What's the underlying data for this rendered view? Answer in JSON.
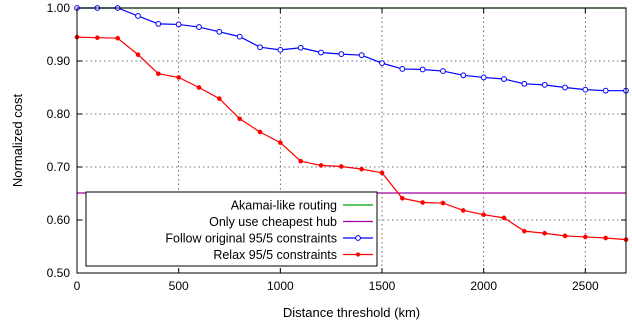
{
  "chart_data": {
    "type": "line",
    "title": "",
    "xlabel": "Distance threshold (km)",
    "ylabel": "Normalized cost",
    "xlim": [
      0,
      2700
    ],
    "ylim": [
      0.5,
      1.0
    ],
    "x_ticks": [
      0,
      500,
      1000,
      1500,
      2000,
      2500
    ],
    "y_ticks": [
      0.5,
      0.6,
      0.7,
      0.8,
      0.9,
      1.0
    ],
    "x_tick_labels": [
      "0",
      "500",
      "1000",
      "1500",
      "2000",
      "2500"
    ],
    "y_tick_labels": [
      "0.50",
      "0.60",
      "0.70",
      "0.80",
      "0.90",
      "1.00"
    ],
    "grid": true,
    "legend_position": "bottom-left",
    "series": [
      {
        "name": "Akamai-like routing",
        "color": "#00a000",
        "marker": "none",
        "x": [
          0,
          2700
        ],
        "y": [
          1.0,
          1.0
        ]
      },
      {
        "name": "Only use cheapest hub",
        "color": "#a000a0",
        "marker": "none",
        "x": [
          0,
          2700
        ],
        "y": [
          0.651,
          0.651
        ]
      },
      {
        "name": "Follow original 95/5 constraints",
        "color": "#0000ff",
        "marker": "circle-open",
        "x": [
          0,
          100,
          200,
          300,
          400,
          500,
          600,
          700,
          800,
          900,
          1000,
          1100,
          1200,
          1300,
          1400,
          1500,
          1600,
          1700,
          1800,
          1900,
          2000,
          2100,
          2200,
          2300,
          2400,
          2500,
          2600,
          2700
        ],
        "y": [
          1.0,
          1.0,
          1.0,
          0.985,
          0.97,
          0.969,
          0.964,
          0.955,
          0.946,
          0.926,
          0.921,
          0.925,
          0.916,
          0.913,
          0.911,
          0.896,
          0.885,
          0.884,
          0.881,
          0.873,
          0.869,
          0.866,
          0.857,
          0.855,
          0.85,
          0.846,
          0.844,
          0.844
        ]
      },
      {
        "name": "Relax 95/5 constraints",
        "color": "#ff0000",
        "marker": "dot",
        "x": [
          0,
          100,
          200,
          300,
          400,
          500,
          600,
          700,
          800,
          900,
          1000,
          1100,
          1200,
          1300,
          1400,
          1500,
          1600,
          1700,
          1800,
          1900,
          2000,
          2100,
          2200,
          2300,
          2400,
          2500,
          2600,
          2700
        ],
        "y": [
          0.945,
          0.944,
          0.943,
          0.912,
          0.876,
          0.869,
          0.85,
          0.829,
          0.791,
          0.766,
          0.746,
          0.711,
          0.703,
          0.701,
          0.696,
          0.689,
          0.641,
          0.633,
          0.632,
          0.618,
          0.61,
          0.604,
          0.579,
          0.575,
          0.57,
          0.568,
          0.566,
          0.563
        ]
      }
    ]
  }
}
